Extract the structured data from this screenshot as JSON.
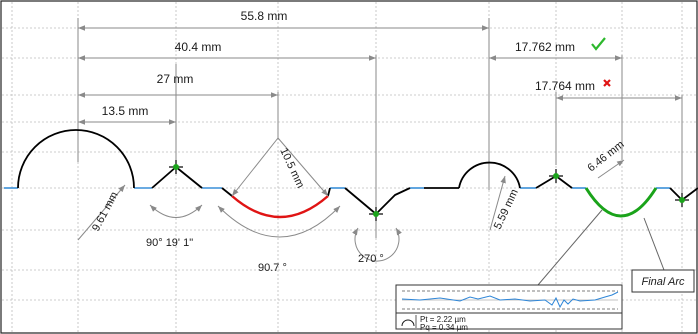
{
  "colors": {
    "grid": "#bcbcbc",
    "dim": "#8a8a8a",
    "profile": "#000000",
    "segment": "#3a8fd8",
    "selected_arc": "#e01414",
    "final_arc": "#1aa31a",
    "check": "#2db82d",
    "cross": "#e01414",
    "trace": "#2e86d8"
  },
  "dimensions": {
    "d558": "55.8 mm",
    "d404": "40.4 mm",
    "d27": "27 mm",
    "d135": "13.5 mm",
    "d17762": "17.762 mm",
    "d17764": "17.764 mm",
    "r961": "9.61 mm",
    "r105": "10.5 mm",
    "r559": "5.59 mm",
    "r646": "6.46 mm"
  },
  "angles": {
    "a90": "90° 19' 1\"",
    "a907": "90.7 °",
    "a270": "270 °"
  },
  "status": {
    "ok_icon": "check-icon",
    "bad_icon": "cross-icon"
  },
  "callout": {
    "final_arc_label": "Final Arc"
  },
  "inset": {
    "pt": "Pt = 2.22 µm",
    "pq": "Pq = 0.34 µm"
  }
}
